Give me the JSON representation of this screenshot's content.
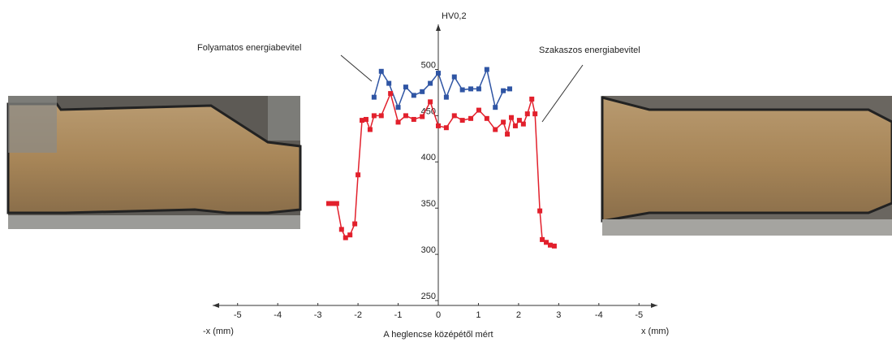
{
  "chart_data": {
    "type": "line",
    "y_title": "HV0,2",
    "x_label_left": "-x (mm)",
    "x_label_right": "x (mm)",
    "x_title": "A heglencse középétől mért",
    "annotations": [
      "Folyamatos energiabevitel",
      "Szakaszos energiabevitel"
    ],
    "xlim": [
      -5.5,
      5.5
    ],
    "ylim": [
      250,
      540
    ],
    "xticks": [
      -5,
      -4,
      -3,
      -2,
      -1,
      0,
      1,
      2,
      3,
      {
        "value": 4,
        "label": "-4"
      },
      {
        "value": 5,
        "label": "-5"
      }
    ],
    "yticks": [
      250,
      300,
      350,
      400,
      450,
      500
    ],
    "grid": false,
    "series": [
      {
        "name": "Folyamatos energiabevitel",
        "color": "#2f55a4",
        "x": [
          -1.6,
          -1.42,
          -1.23,
          -1.0,
          -0.81,
          -0.61,
          -0.4,
          -0.2,
          0,
          0.2,
          0.4,
          0.6,
          0.81,
          1.01,
          1.21,
          1.42,
          1.62,
          1.78
        ],
        "values": [
          470,
          498,
          485,
          459,
          481,
          472,
          476,
          485,
          496,
          470,
          492,
          478,
          479,
          479,
          500,
          459,
          477,
          479
        ]
      },
      {
        "name": "Szakaszos energiabevitel",
        "color": "#e2202c",
        "x": [
          -2.73,
          -2.63,
          -2.53,
          -2.41,
          -2.31,
          -2.2,
          -2.08,
          -2.0,
          -1.9,
          -1.8,
          -1.7,
          -1.6,
          -1.42,
          -1.19,
          -1.0,
          -0.81,
          -0.61,
          -0.4,
          -0.2,
          0,
          0.2,
          0.4,
          0.6,
          0.81,
          1.01,
          1.21,
          1.42,
          1.62,
          1.72,
          1.82,
          1.92,
          2.02,
          2.12,
          2.22,
          2.33,
          2.41,
          2.53,
          2.59,
          2.69,
          2.79,
          2.89
        ],
        "values": [
          355,
          355,
          355,
          327,
          318,
          321,
          333,
          386,
          445,
          446,
          435,
          450,
          450,
          474,
          443,
          450,
          446,
          449,
          465,
          439,
          437,
          450,
          445,
          447,
          456,
          447,
          435,
          443,
          430,
          448,
          439,
          445,
          441,
          452,
          468,
          452,
          347,
          316,
          313,
          310,
          309
        ]
      }
    ]
  }
}
